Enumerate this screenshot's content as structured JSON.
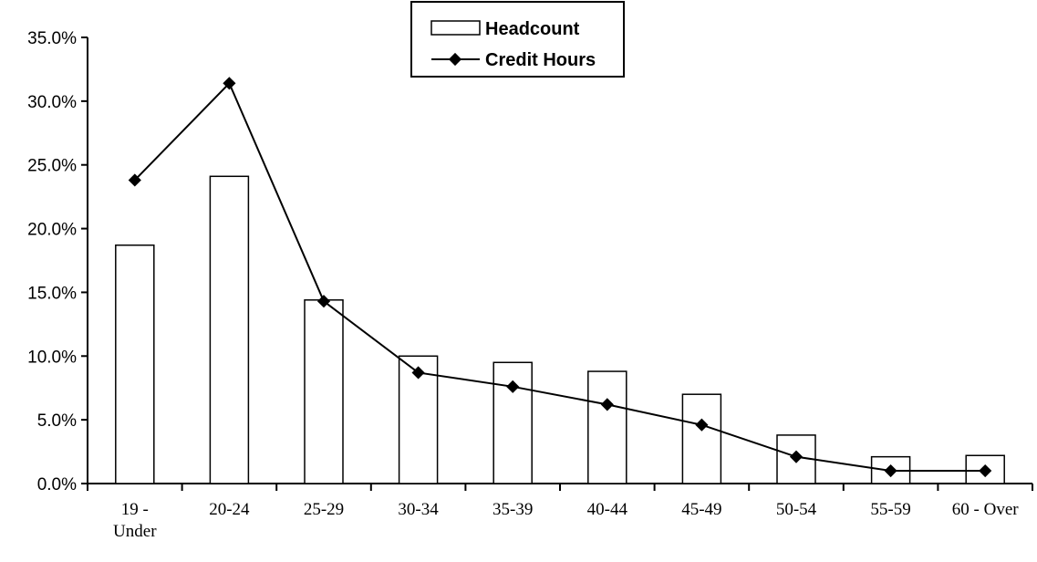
{
  "chart_data": {
    "type": "bar",
    "categories": [
      "19 -\nUnder",
      "20-24",
      "25-29",
      "30-34",
      "35-39",
      "40-44",
      "45-49",
      "50-54",
      "55-59",
      "60 - Over"
    ],
    "series": [
      {
        "name": "Headcount",
        "type": "bar",
        "values": [
          18.7,
          24.1,
          14.4,
          10.0,
          9.5,
          8.8,
          7.0,
          3.8,
          2.1,
          2.2
        ]
      },
      {
        "name": "Credit Hours",
        "type": "line",
        "values": [
          23.8,
          31.4,
          14.3,
          8.7,
          7.6,
          6.2,
          4.6,
          2.1,
          1.0,
          1.0
        ]
      }
    ],
    "ylim": [
      0,
      35
    ],
    "yticks": [
      "0.0%",
      "5.0%",
      "10.0%",
      "15.0%",
      "20.0%",
      "25.0%",
      "30.0%",
      "35.0%"
    ],
    "ytick_values": [
      0,
      5,
      10,
      15,
      20,
      25,
      30,
      35
    ],
    "title": "",
    "xlabel": "",
    "ylabel": "",
    "grid": false,
    "legend": {
      "position": "top-center",
      "entries": [
        "Headcount",
        "Credit Hours"
      ]
    },
    "colors": {
      "bar_fill": "#ffffff",
      "bar_stroke": "#000000",
      "line": "#000000"
    }
  }
}
